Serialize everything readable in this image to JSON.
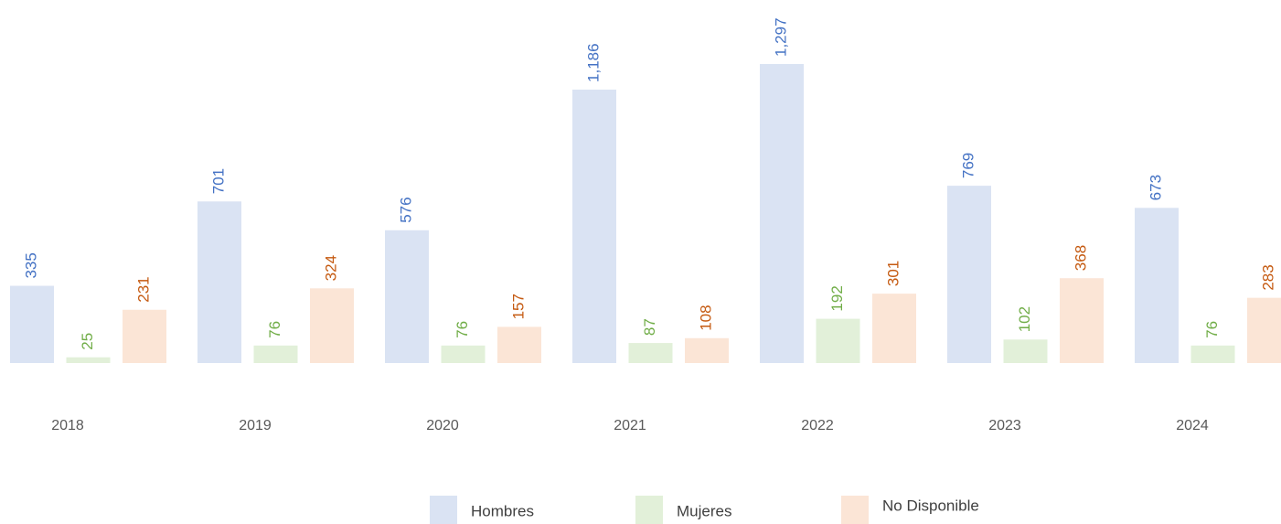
{
  "chart_data": {
    "type": "bar",
    "categories": [
      "2018",
      "2019",
      "2020",
      "2021",
      "2022",
      "2023",
      "2024"
    ],
    "series": [
      {
        "name": "Hombres",
        "color": "#dae3f3",
        "label_color": "#4472c4",
        "values": [
          335,
          701,
          576,
          1186,
          1297,
          769,
          673
        ],
        "value_labels": [
          "335",
          "701",
          "576",
          "1,186",
          "1,297",
          "769",
          "673"
        ]
      },
      {
        "name": "Mujeres",
        "color": "#e2f0d9",
        "label_color": "#70ad47",
        "values": [
          25,
          76,
          76,
          87,
          192,
          102,
          76
        ]
      },
      {
        "name": "No Disponible",
        "color": "#fbe5d6",
        "label_color": "#c55a11",
        "values": [
          231,
          324,
          157,
          108,
          301,
          368,
          283
        ]
      }
    ],
    "ylim": [
      0,
      1300
    ],
    "grid": false,
    "legend": "bottom"
  }
}
